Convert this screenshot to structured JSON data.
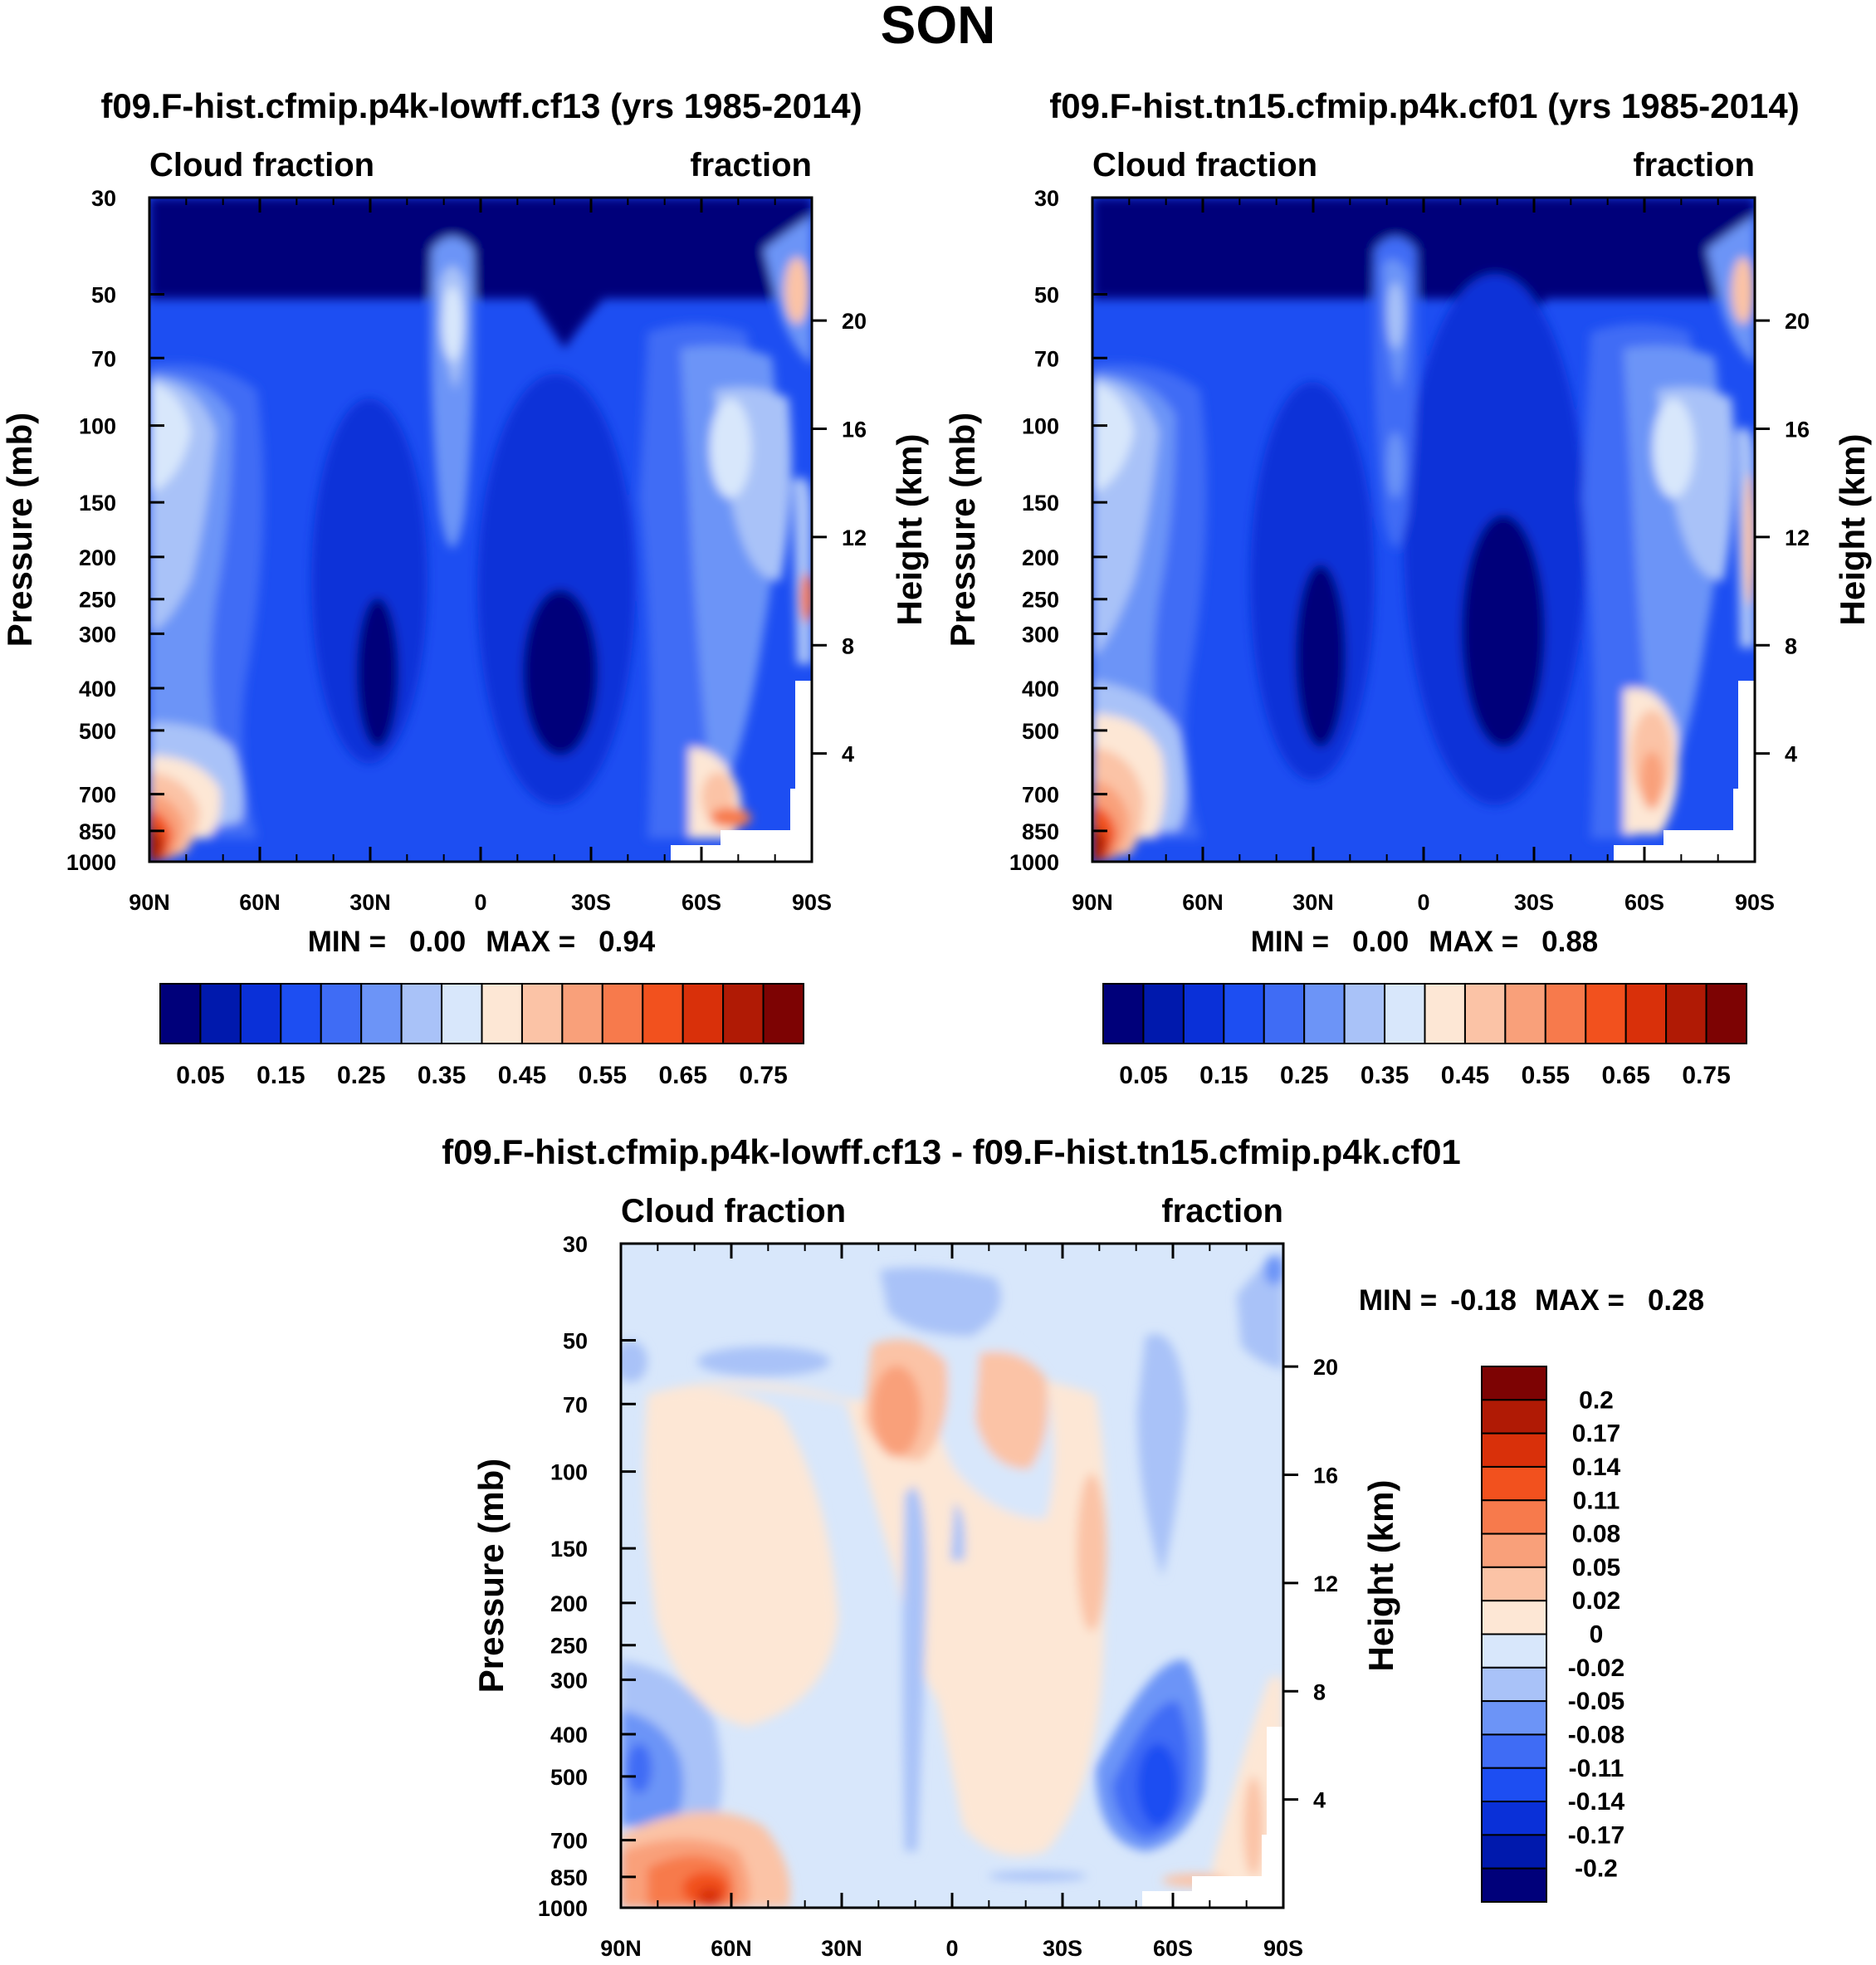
{
  "main_title": "SON",
  "colors": {
    "fraction_palette": [
      "#00007a",
      "#0019ad",
      "#0a30d8",
      "#1d4ef2",
      "#3f6cf5",
      "#6c94f7",
      "#a9c2f8",
      "#d8e7fb",
      "#fde7d5",
      "#fbc3a6",
      "#f9a07a",
      "#f77a4c",
      "#f2511e",
      "#d9300a",
      "#b01a05",
      "#7d0303"
    ],
    "diff_palette": [
      "#00007a",
      "#0019ad",
      "#0a30d8",
      "#1d4ef2",
      "#3f6cf5",
      "#6c94f7",
      "#a9c2f8",
      "#d8e7fb",
      "#fde7d5",
      "#fbc3a6",
      "#f9a07a",
      "#f77a4c",
      "#f2511e",
      "#d9300a",
      "#b01a05",
      "#7d0303"
    ]
  },
  "chart_data": [
    {
      "type": "heatmap",
      "title": "f09.F-hist.cfmip.p4k-lowff.cf13 (yrs 1985-2014)",
      "left_label": "Cloud fraction",
      "right_label": "fraction",
      "xlabel": "",
      "ylabel": "Pressure (mb)",
      "y2label": "Height (km)",
      "x_ticks": [
        "90N",
        "60N",
        "30N",
        "0",
        "30S",
        "60S",
        "90S"
      ],
      "x_range": [
        90,
        -90
      ],
      "y_ticks": [
        30,
        50,
        70,
        100,
        150,
        200,
        250,
        300,
        400,
        500,
        700,
        850,
        1000
      ],
      "y_log": true,
      "y_range": [
        30,
        1000
      ],
      "y2_ticks": [
        20,
        16,
        12,
        8,
        4
      ],
      "stats_min_label": "MIN =",
      "stats_min": "0.00",
      "stats_max_label": "MAX =",
      "stats_max": "0.94",
      "colorbar_orientation": "horizontal",
      "colorbar_labels": [
        "0.05",
        "0.15",
        "0.25",
        "0.35",
        "0.45",
        "0.55",
        "0.65",
        "0.75"
      ]
    },
    {
      "type": "heatmap",
      "title": "f09.F-hist.tn15.cfmip.p4k.cf01 (yrs 1985-2014)",
      "left_label": "Cloud fraction",
      "right_label": "fraction",
      "xlabel": "",
      "ylabel": "Pressure (mb)",
      "y2label": "Height (km)",
      "x_ticks": [
        "90N",
        "60N",
        "30N",
        "0",
        "30S",
        "60S",
        "90S"
      ],
      "x_range": [
        90,
        -90
      ],
      "y_ticks": [
        30,
        50,
        70,
        100,
        150,
        200,
        250,
        300,
        400,
        500,
        700,
        850,
        1000
      ],
      "y_log": true,
      "y_range": [
        30,
        1000
      ],
      "y2_ticks": [
        20,
        16,
        12,
        8,
        4
      ],
      "stats_min_label": "MIN =",
      "stats_min": "0.00",
      "stats_max_label": "MAX =",
      "stats_max": "0.88",
      "colorbar_orientation": "horizontal",
      "colorbar_labels": [
        "0.05",
        "0.15",
        "0.25",
        "0.35",
        "0.45",
        "0.55",
        "0.65",
        "0.75"
      ]
    },
    {
      "type": "heatmap",
      "title": "f09.F-hist.cfmip.p4k-lowff.cf13 - f09.F-hist.tn15.cfmip.p4k.cf01",
      "left_label": "Cloud fraction",
      "right_label": "fraction",
      "xlabel": "",
      "ylabel": "Pressure (mb)",
      "y2label": "Height (km)",
      "x_ticks": [
        "90N",
        "60N",
        "30N",
        "0",
        "30S",
        "60S",
        "90S"
      ],
      "x_range": [
        90,
        -90
      ],
      "y_ticks": [
        30,
        50,
        70,
        100,
        150,
        200,
        250,
        300,
        400,
        500,
        700,
        850,
        1000
      ],
      "y_log": true,
      "y_range": [
        30,
        1000
      ],
      "y2_ticks": [
        20,
        16,
        12,
        8,
        4
      ],
      "stats_min_label": "MIN =",
      "stats_min": "-0.18",
      "stats_max_label": "MAX =",
      "stats_max": "0.28",
      "colorbar_orientation": "vertical",
      "colorbar_labels": [
        "0.2",
        "0.17",
        "0.14",
        "0.11",
        "0.08",
        "0.05",
        "0.02",
        "0",
        "-0.02",
        "-0.05",
        "-0.08",
        "-0.11",
        "-0.14",
        "-0.17",
        "-0.2"
      ]
    }
  ]
}
